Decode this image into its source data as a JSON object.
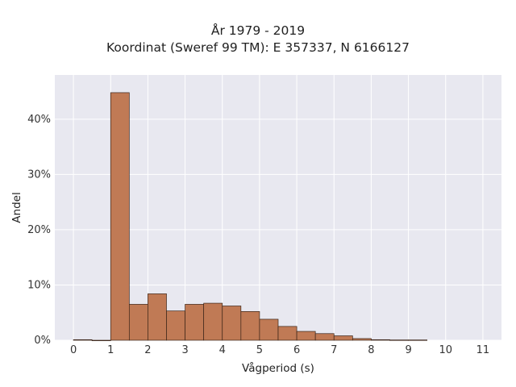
{
  "chart_data": {
    "type": "bar",
    "title": "År 1979 - 2019",
    "subtitle": "Koordinat (Sweref 99 TM): E 357337, N 6166127",
    "xlabel": "Vågperiod (s)",
    "ylabel": "Andel",
    "bin_width": 0.5,
    "bins": [
      {
        "start": 0.0,
        "value": 0.1
      },
      {
        "start": 0.5,
        "value": 0.0
      },
      {
        "start": 1.0,
        "value": 44.8
      },
      {
        "start": 1.5,
        "value": 6.5
      },
      {
        "start": 2.0,
        "value": 8.4
      },
      {
        "start": 2.5,
        "value": 5.3
      },
      {
        "start": 3.0,
        "value": 6.5
      },
      {
        "start": 3.5,
        "value": 6.7
      },
      {
        "start": 4.0,
        "value": 6.2
      },
      {
        "start": 4.5,
        "value": 5.2
      },
      {
        "start": 5.0,
        "value": 3.8
      },
      {
        "start": 5.5,
        "value": 2.5
      },
      {
        "start": 6.0,
        "value": 1.6
      },
      {
        "start": 6.5,
        "value": 1.2
      },
      {
        "start": 7.0,
        "value": 0.8
      },
      {
        "start": 7.5,
        "value": 0.3
      },
      {
        "start": 8.0,
        "value": 0.1
      },
      {
        "start": 8.5,
        "value": 0.05
      },
      {
        "start": 9.0,
        "value": 0.05
      }
    ],
    "xlim": [
      -0.5,
      11.5
    ],
    "ylim": [
      0,
      48
    ],
    "x_ticks": [
      0,
      1,
      2,
      3,
      4,
      5,
      6,
      7,
      8,
      9,
      10,
      11
    ],
    "y_ticks": [
      0,
      10,
      20,
      30,
      40
    ],
    "y_tick_labels": [
      "0%",
      "10%",
      "20%",
      "30%",
      "40%"
    ],
    "grid": true,
    "colors": {
      "bar_fill": "#c07a55",
      "bar_stroke": "#3a2418",
      "plot_bg": "#e8e8f0",
      "grid": "#ffffff"
    }
  }
}
